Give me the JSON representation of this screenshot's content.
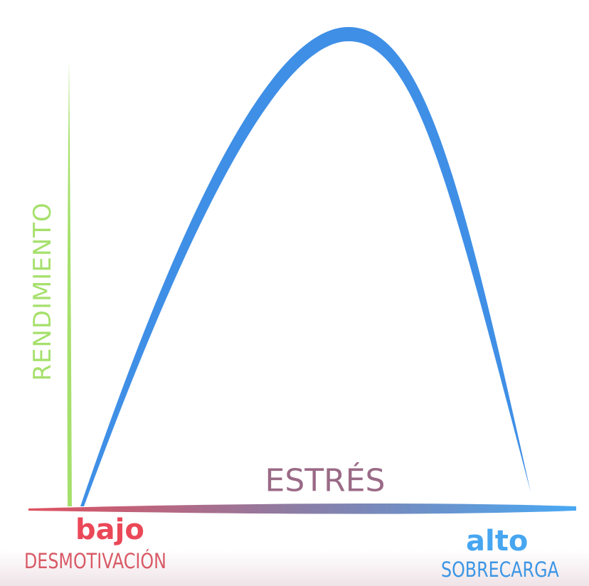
{
  "diagram": {
    "y_axis_label": "RENDIMIENTO",
    "x_axis_label": "ESTRÉS",
    "low_end": {
      "label": "bajo",
      "sublabel": "DESMOTIVACIÓN"
    },
    "high_end": {
      "label": "alto",
      "sublabel": "SOBRECARGA"
    },
    "curve_shape": "inverted-U",
    "colors": {
      "curve": "#3f8fe6",
      "y_axis": "#a6e06c",
      "x_axis_start": "#e0505e",
      "x_axis_end": "#48a8f4",
      "low": "#ea4858",
      "high": "#47a6f0"
    }
  }
}
